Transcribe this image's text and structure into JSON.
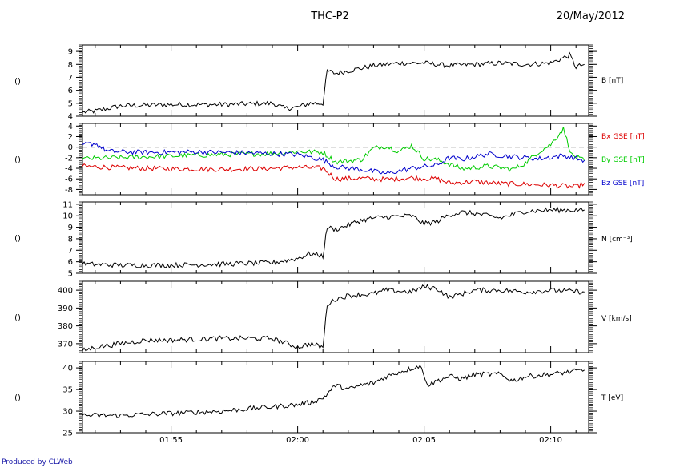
{
  "header": {
    "title": "THC-P2",
    "date": "20/May/2012"
  },
  "footer": {
    "credit": "Produced by CLWeb"
  },
  "colors": {
    "black": "#000000",
    "bx": "#dd0000",
    "by": "#00cc00",
    "bz": "#0000cc",
    "credit": "#1a1aa8"
  },
  "chart_data": [
    {
      "type": "line",
      "left_label": "()",
      "x_range": [
        "01:51:30",
        "02:11:30"
      ],
      "x_tick_labels": [
        "01:55",
        "02:00",
        "02:05",
        "02:10"
      ],
      "ylim": [
        4,
        9.5
      ],
      "y_ticks": [
        4,
        5,
        6,
        7,
        8,
        9
      ],
      "series": [
        {
          "name": "B [nT]",
          "color": "#000000",
          "points": [
            [
              "01:51:30",
              4.3
            ],
            [
              "01:52:00",
              4.4
            ],
            [
              "01:53:00",
              4.8
            ],
            [
              "01:55:00",
              4.9
            ],
            [
              "01:57:00",
              4.9
            ],
            [
              "01:59:00",
              5.0
            ],
            [
              "01:59:30",
              4.6
            ],
            [
              "02:00:00",
              4.7
            ],
            [
              "02:00:30",
              5.0
            ],
            [
              "02:01:00",
              5.0
            ],
            [
              "02:01:10",
              7.5
            ],
            [
              "02:01:30",
              7.3
            ],
            [
              "02:02:00",
              7.5
            ],
            [
              "02:03:00",
              7.9
            ],
            [
              "02:04:00",
              8.1
            ],
            [
              "02:05:00",
              8.1
            ],
            [
              "02:06:00",
              7.9
            ],
            [
              "02:07:00",
              8.0
            ],
            [
              "02:08:00",
              8.1
            ],
            [
              "02:09:00",
              8.0
            ],
            [
              "02:10:00",
              8.1
            ],
            [
              "02:10:45",
              8.7
            ],
            [
              "02:11:00",
              7.8
            ],
            [
              "02:11:20",
              8.0
            ]
          ]
        }
      ]
    },
    {
      "type": "line",
      "left_label": "()",
      "x_range": [
        "01:51:30",
        "02:11:30"
      ],
      "x_tick_labels": [
        "01:55",
        "02:00",
        "02:05",
        "02:10"
      ],
      "ylim": [
        -9,
        4.5
      ],
      "y_ticks": [
        4,
        2,
        0,
        -2,
        -4,
        -6,
        -8
      ],
      "reference_line": 0,
      "series": [
        {
          "name": "Bx GSE [nT]",
          "color": "#dd0000",
          "points": [
            [
              "01:51:30",
              -3.6
            ],
            [
              "01:53:00",
              -3.9
            ],
            [
              "01:55:00",
              -4.1
            ],
            [
              "01:57:00",
              -4.2
            ],
            [
              "01:59:00",
              -4.0
            ],
            [
              "02:00:00",
              -3.8
            ],
            [
              "02:01:00",
              -4.0
            ],
            [
              "02:01:30",
              -6.0
            ],
            [
              "02:02:30",
              -5.9
            ],
            [
              "02:03:30",
              -6.1
            ],
            [
              "02:04:30",
              -5.8
            ],
            [
              "02:05:30",
              -6.0
            ],
            [
              "02:06:00",
              -6.8
            ],
            [
              "02:07:00",
              -6.5
            ],
            [
              "02:08:00",
              -6.9
            ],
            [
              "02:09:00",
              -7.0
            ],
            [
              "02:10:00",
              -7.2
            ],
            [
              "02:11:00",
              -7.5
            ],
            [
              "02:11:20",
              -6.8
            ]
          ]
        },
        {
          "name": "By GSE [nT]",
          "color": "#00cc00",
          "points": [
            [
              "01:51:30",
              -2.2
            ],
            [
              "01:53:00",
              -2.0
            ],
            [
              "01:55:00",
              -1.7
            ],
            [
              "01:57:00",
              -1.4
            ],
            [
              "01:59:00",
              -1.2
            ],
            [
              "02:00:00",
              -0.8
            ],
            [
              "02:01:00",
              -1.0
            ],
            [
              "02:01:30",
              -2.8
            ],
            [
              "02:02:30",
              -2.4
            ],
            [
              "02:03:00",
              -0.2
            ],
            [
              "02:03:30",
              0.2
            ],
            [
              "02:04:00",
              -0.8
            ],
            [
              "02:04:30",
              0.3
            ],
            [
              "02:05:00",
              -2.2
            ],
            [
              "02:05:30",
              -2.4
            ],
            [
              "02:06:00",
              -3.2
            ],
            [
              "02:06:30",
              -4.1
            ],
            [
              "02:07:30",
              -3.6
            ],
            [
              "02:08:30",
              -4.2
            ],
            [
              "02:09:00",
              -3.0
            ],
            [
              "02:09:30",
              -1.0
            ],
            [
              "02:10:00",
              0.5
            ],
            [
              "02:10:30",
              3.5
            ],
            [
              "02:10:50",
              -1.5
            ],
            [
              "02:11:20",
              -2.6
            ]
          ]
        },
        {
          "name": "Bz GSE [nT]",
          "color": "#0000cc",
          "points": [
            [
              "01:51:30",
              0.5
            ],
            [
              "01:52:00",
              0.7
            ],
            [
              "01:52:30",
              -0.8
            ],
            [
              "01:54:00",
              -1.0
            ],
            [
              "01:56:00",
              -0.9
            ],
            [
              "01:58:00",
              -1.1
            ],
            [
              "02:00:00",
              -1.4
            ],
            [
              "02:01:00",
              -2.4
            ],
            [
              "02:01:30",
              -3.7
            ],
            [
              "02:02:30",
              -4.2
            ],
            [
              "02:03:30",
              -5.0
            ],
            [
              "02:04:30",
              -4.0
            ],
            [
              "02:05:30",
              -3.4
            ],
            [
              "02:06:00",
              -2.0
            ],
            [
              "02:06:30",
              -2.3
            ],
            [
              "02:07:30",
              -1.3
            ],
            [
              "02:08:30",
              -1.8
            ],
            [
              "02:09:30",
              -2.2
            ],
            [
              "02:10:30",
              -1.6
            ],
            [
              "02:11:20",
              -2.5
            ]
          ]
        }
      ]
    },
    {
      "type": "line",
      "left_label": "()",
      "x_range": [
        "01:51:30",
        "02:11:30"
      ],
      "x_tick_labels": [
        "01:55",
        "02:00",
        "02:05",
        "02:10"
      ],
      "ylim": [
        5,
        11.2
      ],
      "y_ticks": [
        5,
        6,
        7,
        8,
        9,
        10,
        11
      ],
      "series": [
        {
          "name": "N [cm^-3]",
          "label_text": "N [cm⁻³]",
          "color": "#000000",
          "points": [
            [
              "01:51:30",
              5.8
            ],
            [
              "01:53:00",
              5.7
            ],
            [
              "01:55:00",
              5.7
            ],
            [
              "01:57:00",
              5.8
            ],
            [
              "01:59:00",
              5.9
            ],
            [
              "01:59:30",
              6.1
            ],
            [
              "02:00:00",
              6.3
            ],
            [
              "02:00:30",
              6.7
            ],
            [
              "02:01:00",
              6.5
            ],
            [
              "02:01:10",
              9.0
            ],
            [
              "02:01:30",
              8.8
            ],
            [
              "02:02:00",
              9.2
            ],
            [
              "02:02:30",
              9.6
            ],
            [
              "02:03:00",
              9.8
            ],
            [
              "02:03:30",
              9.9
            ],
            [
              "02:04:30",
              10.0
            ],
            [
              "02:05:00",
              9.3
            ],
            [
              "02:05:30",
              9.5
            ],
            [
              "02:06:00",
              10.1
            ],
            [
              "02:06:30",
              10.3
            ],
            [
              "02:07:00",
              10.2
            ],
            [
              "02:08:00",
              9.8
            ],
            [
              "02:09:00",
              10.4
            ],
            [
              "02:10:00",
              10.5
            ],
            [
              "02:11:20",
              10.5
            ]
          ]
        }
      ]
    },
    {
      "type": "line",
      "left_label": "()",
      "x_range": [
        "01:51:30",
        "02:11:30"
      ],
      "x_tick_labels": [
        "01:55",
        "02:00",
        "02:05",
        "02:10"
      ],
      "ylim": [
        365,
        405
      ],
      "y_ticks": [
        370,
        380,
        390,
        400
      ],
      "series": [
        {
          "name": "V [km/s]",
          "color": "#000000",
          "points": [
            [
              "01:51:30",
              366
            ],
            [
              "01:52:00",
              368
            ],
            [
              "01:53:00",
              370
            ],
            [
              "01:54:00",
              372
            ],
            [
              "01:55:00",
              372
            ],
            [
              "01:57:00",
              373
            ],
            [
              "01:59:00",
              373
            ],
            [
              "02:00:00",
              368
            ],
            [
              "02:00:30",
              370
            ],
            [
              "02:01:00",
              368
            ],
            [
              "02:01:10",
              392
            ],
            [
              "02:01:30",
              395
            ],
            [
              "02:02:00",
              397
            ],
            [
              "02:03:00",
              398
            ],
            [
              "02:03:30",
              400
            ],
            [
              "02:04:30",
              399
            ],
            [
              "02:05:00",
              402
            ],
            [
              "02:05:30",
              401
            ],
            [
              "02:06:00",
              396
            ],
            [
              "02:07:00",
              400
            ],
            [
              "02:08:00",
              400
            ],
            [
              "02:09:00",
              399
            ],
            [
              "02:10:00",
              400
            ],
            [
              "02:11:20",
              399
            ]
          ]
        }
      ]
    },
    {
      "type": "line",
      "left_label": "()",
      "x_range": [
        "01:51:30",
        "02:11:30"
      ],
      "x_tick_labels": [
        "01:55",
        "02:00",
        "02:05",
        "02:10"
      ],
      "ylim": [
        25,
        41.5
      ],
      "y_ticks": [
        25,
        30,
        35,
        40
      ],
      "series": [
        {
          "name": "T [eV]",
          "color": "#000000",
          "points": [
            [
              "01:51:30",
              29
            ],
            [
              "01:53:00",
              29
            ],
            [
              "01:55:00",
              29.5
            ],
            [
              "01:57:00",
              30
            ],
            [
              "01:59:00",
              31
            ],
            [
              "02:00:00",
              31.5
            ],
            [
              "02:00:30",
              32
            ],
            [
              "02:01:00",
              33
            ],
            [
              "02:01:30",
              36
            ],
            [
              "02:02:00",
              35
            ],
            [
              "02:02:30",
              36
            ],
            [
              "02:03:00",
              36.5
            ],
            [
              "02:03:30",
              38
            ],
            [
              "02:04:00",
              39
            ],
            [
              "02:04:50",
              40.5
            ],
            [
              "02:05:10",
              36
            ],
            [
              "02:05:30",
              37
            ],
            [
              "02:06:00",
              38
            ],
            [
              "02:06:30",
              37.5
            ],
            [
              "02:07:00",
              38.5
            ],
            [
              "02:08:00",
              38.5
            ],
            [
              "02:08:30",
              37
            ],
            [
              "02:09:00",
              38
            ],
            [
              "02:10:00",
              38.5
            ],
            [
              "02:11:20",
              39.5
            ]
          ]
        }
      ]
    }
  ]
}
